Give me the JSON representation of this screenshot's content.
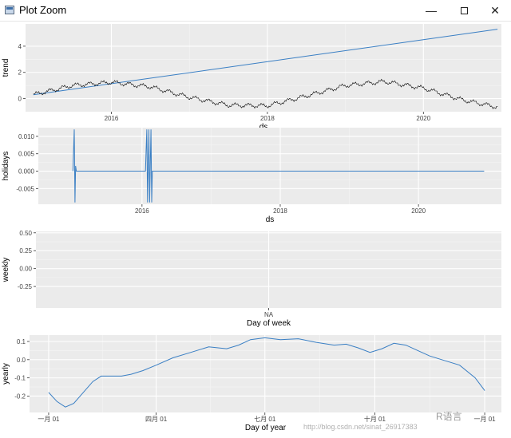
{
  "window": {
    "title": "Plot Zoom",
    "minimize_glyph": "—",
    "close_glyph": "✕",
    "icon": "app-window-icon"
  },
  "watermark": {
    "text": "R语言",
    "url": "http://blog.csdn.net/sinat_26917383"
  },
  "chart_data": [
    {
      "type": "line",
      "xlabel": "ds",
      "ylabel": "trend",
      "xlim": [
        2014.9,
        2021.0
      ],
      "ylim": [
        -1.0,
        5.7
      ],
      "xticks": [
        2016,
        2018,
        2020
      ],
      "xtick_labels": [
        "2016",
        "2018",
        "2020"
      ],
      "yticks": [
        0,
        2,
        4
      ],
      "ytick_labels": [
        "0",
        "2",
        "4"
      ],
      "grid": true,
      "series": [
        {
          "color": "#3a7fc4",
          "x": [
            2015.0,
            2020.95
          ],
          "y": [
            0.3,
            5.3
          ]
        },
        {
          "color": "#000000",
          "x": [
            2015.0,
            2015.5,
            2016.0,
            2016.5,
            2017.0,
            2017.5,
            2018.0,
            2018.5,
            2019.0,
            2019.5,
            2020.0,
            2020.5,
            2020.95
          ],
          "y": [
            0.3,
            1.0,
            1.25,
            0.9,
            0.1,
            -0.5,
            -0.55,
            0.2,
            1.0,
            1.3,
            0.8,
            -0.1,
            -0.65
          ]
        }
      ]
    },
    {
      "type": "line",
      "xlabel": "ds",
      "ylabel": "holidays",
      "xlim": [
        2014.5,
        2021.2
      ],
      "ylim": [
        -0.0095,
        0.0125
      ],
      "xticks": [
        2016,
        2018,
        2020
      ],
      "xtick_labels": [
        "2016",
        "2018",
        "2020"
      ],
      "yticks": [
        0.01,
        0.005,
        0.0,
        -0.005
      ],
      "ytick_labels": [
        "0.010",
        "0.005",
        "0.000",
        "-0.005"
      ],
      "grid": true,
      "series": [
        {
          "color": "#3a7fc4",
          "x": [
            2015.0,
            2015.02,
            2015.03,
            2015.04,
            2015.05,
            2016.05,
            2016.06,
            2016.07,
            2016.08,
            2016.09,
            2016.1,
            2016.11,
            2016.12,
            2016.13,
            2016.14,
            2016.15,
            2020.95
          ],
          "y": [
            0,
            0.012,
            -0.009,
            0.0015,
            0,
            0,
            0.006,
            0.012,
            -0.009,
            0.001,
            0.012,
            -0.009,
            0.0015,
            0.012,
            -0.009,
            0,
            0
          ]
        }
      ]
    },
    {
      "type": "line",
      "xlabel": "Day of week",
      "ylabel": "weekly",
      "xlim": [
        0,
        2
      ],
      "ylim": [
        -0.55,
        0.52
      ],
      "xticks": [
        1
      ],
      "xtick_labels": [
        "NA"
      ],
      "yticks": [
        0.5,
        0.25,
        0.0,
        -0.25
      ],
      "ytick_labels": [
        "0.50",
        "0.25",
        "0.00",
        "-0.25"
      ],
      "grid": true,
      "series": []
    },
    {
      "type": "line",
      "xlabel": "Day of year",
      "ylabel": "yearly",
      "xlim": [
        -15,
        380
      ],
      "ylim": [
        -0.29,
        0.135
      ],
      "xticks": [
        1,
        91,
        182,
        274,
        366
      ],
      "xtick_labels": [
        "一月 01",
        "四月 01",
        "七月 01",
        "十月 01",
        "一月 01"
      ],
      "yticks": [
        0.1,
        0.0,
        -0.1,
        -0.2
      ],
      "ytick_labels": [
        "0.1",
        "0.0",
        "-0.1",
        "-0.2"
      ],
      "grid": true,
      "series": [
        {
          "color": "#3a7fc4",
          "x": [
            1,
            8,
            15,
            22,
            30,
            38,
            45,
            55,
            62,
            70,
            80,
            91,
            105,
            120,
            135,
            150,
            160,
            170,
            182,
            195,
            210,
            225,
            240,
            250,
            260,
            270,
            280,
            290,
            300,
            310,
            320,
            330,
            345,
            358,
            366
          ],
          "y": [
            -0.18,
            -0.23,
            -0.26,
            -0.24,
            -0.18,
            -0.12,
            -0.09,
            -0.09,
            -0.09,
            -0.08,
            -0.06,
            -0.03,
            0.01,
            0.04,
            0.07,
            0.06,
            0.08,
            0.11,
            0.12,
            0.11,
            0.115,
            0.095,
            0.08,
            0.085,
            0.065,
            0.04,
            0.06,
            0.09,
            0.08,
            0.05,
            0.02,
            0.0,
            -0.03,
            -0.1,
            -0.17
          ]
        }
      ]
    }
  ]
}
